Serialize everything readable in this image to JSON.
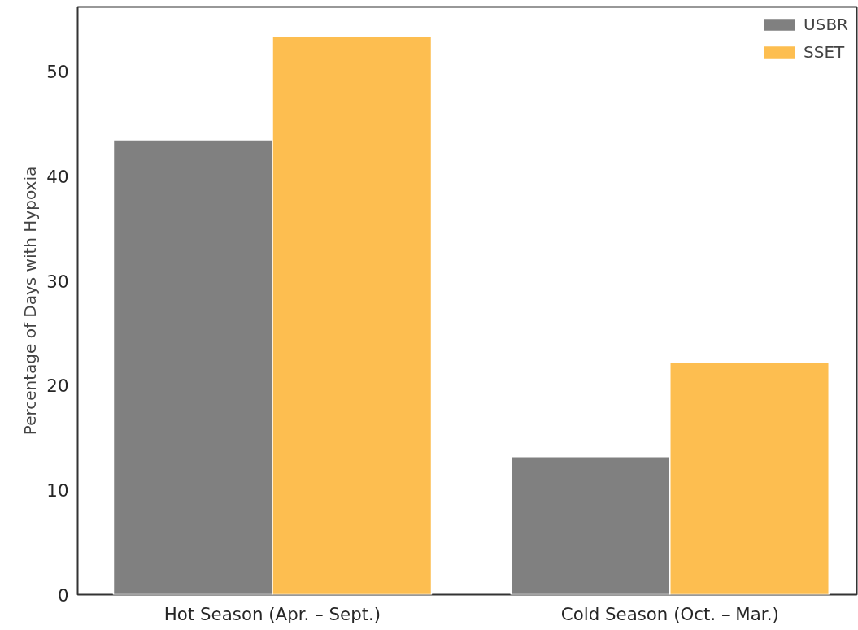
{
  "chart_data": {
    "type": "bar",
    "ylabel": "Percentage of Days with Hypoxia",
    "categories": [
      "Hot Season (Apr. – Sept.)",
      "Cold Season (Oct. – Mar.)"
    ],
    "series": [
      {
        "name": "USBR",
        "color": "#808080",
        "values": [
          43.5,
          13.2
        ]
      },
      {
        "name": "SSET",
        "color": "#fdbe50",
        "values": [
          53.4,
          22.2
        ]
      }
    ],
    "ylim": [
      0,
      56.2
    ],
    "yticks": [
      0,
      10,
      20,
      30,
      40,
      50
    ],
    "grid": false,
    "legend": "top right"
  }
}
